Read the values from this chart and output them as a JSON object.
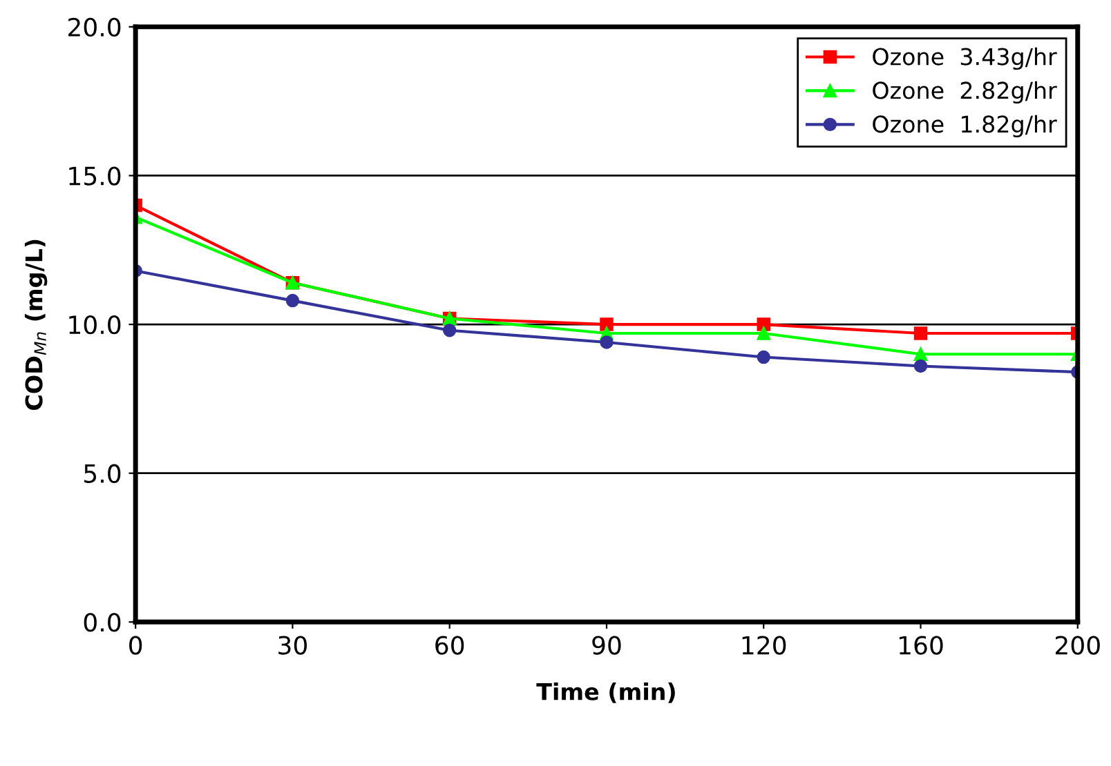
{
  "chart_data": {
    "type": "line",
    "xlabel": "Time (min)",
    "ylabel": "COD$_{Mn}$ (mg/L)",
    "categories": [
      "0",
      "30",
      "60",
      "90",
      "120",
      "160",
      "200"
    ],
    "ylim": [
      0,
      20
    ],
    "yticks": [
      {
        "value": 0,
        "label": "0.0"
      },
      {
        "value": 5,
        "label": "5.0"
      },
      {
        "value": 10,
        "label": "10.0"
      },
      {
        "value": 15,
        "label": "15.0"
      },
      {
        "value": 20,
        "label": "20.0"
      }
    ],
    "grid": "y",
    "legend": "top right",
    "line_style": "solid",
    "series": [
      {
        "name": "Ozone  3.43g/hr",
        "color": "#ff0000",
        "marker": "square",
        "values": [
          14.0,
          11.4,
          10.2,
          10.0,
          10.0,
          9.7,
          9.7
        ]
      },
      {
        "name": "Ozone  2.82g/hr",
        "color": "#00ff00",
        "marker": "triangle",
        "values": [
          13.6,
          11.4,
          10.2,
          9.7,
          9.7,
          9.0,
          9.0
        ]
      },
      {
        "name": "Ozone  1.82g/hr",
        "color": "#333399",
        "marker": "circle",
        "values": [
          11.8,
          10.8,
          9.8,
          9.4,
          8.9,
          8.6,
          8.4
        ]
      }
    ]
  }
}
